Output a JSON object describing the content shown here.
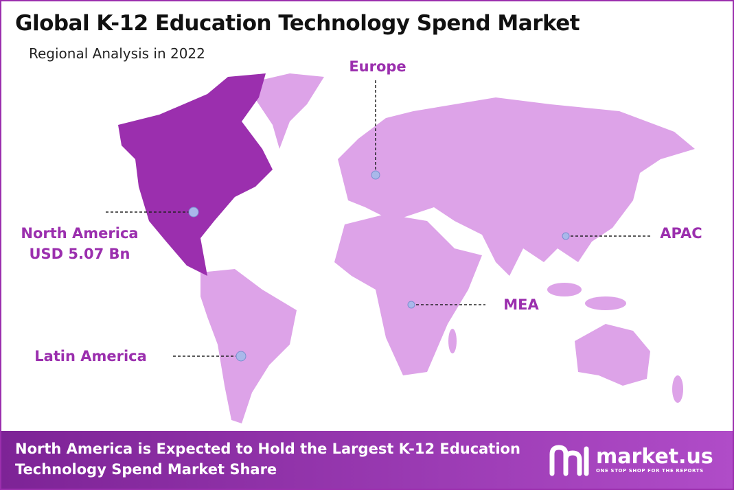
{
  "header": {
    "title": "Global K-12 Education Technology Spend Market",
    "subtitle": "Regional Analysis in 2022"
  },
  "regions": [
    {
      "name": "North America",
      "value": "USD 5.07 Bn"
    },
    {
      "name": "Europe"
    },
    {
      "name": "APAC"
    },
    {
      "name": "MEA"
    },
    {
      "name": "Latin America"
    }
  ],
  "footer": {
    "lines": [
      "North America is Expected to Hold the Largest K-12 Education",
      "Technology Spend Market Share"
    ]
  },
  "logo": {
    "name": "market.us",
    "tagline": "ONE STOP SHOP FOR THE REPORTS"
  }
}
